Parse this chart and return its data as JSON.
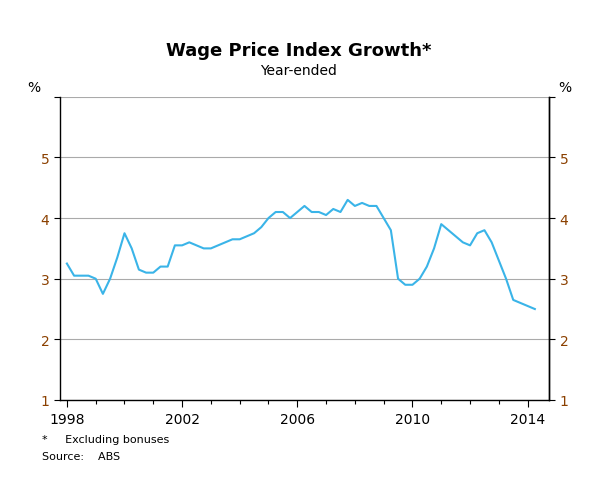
{
  "title": "Wage Price Index Growth*",
  "subtitle": "Year-ended",
  "ylabel_left": "%",
  "ylabel_right": "%",
  "footnote1": "*     Excluding bonuses",
  "footnote2": "Source:    ABS",
  "line_color": "#3ab4e8",
  "line_width": 1.5,
  "ylim": [
    1,
    6
  ],
  "yticks": [
    1,
    2,
    3,
    4,
    5,
    6
  ],
  "ytick_labels": [
    "1",
    "2",
    "3",
    "4",
    "5",
    ""
  ],
  "background_color": "#ffffff",
  "x_values": [
    1998.0,
    1998.25,
    1998.5,
    1998.75,
    1999.0,
    1999.25,
    1999.5,
    1999.75,
    2000.0,
    2000.25,
    2000.5,
    2000.75,
    2001.0,
    2001.25,
    2001.5,
    2001.75,
    2002.0,
    2002.25,
    2002.5,
    2002.75,
    2003.0,
    2003.25,
    2003.5,
    2003.75,
    2004.0,
    2004.25,
    2004.5,
    2004.75,
    2005.0,
    2005.25,
    2005.5,
    2005.75,
    2006.0,
    2006.25,
    2006.5,
    2006.75,
    2007.0,
    2007.25,
    2007.5,
    2007.75,
    2008.0,
    2008.25,
    2008.5,
    2008.75,
    2009.0,
    2009.25,
    2009.5,
    2009.75,
    2010.0,
    2010.25,
    2010.5,
    2010.75,
    2011.0,
    2011.25,
    2011.5,
    2011.75,
    2012.0,
    2012.25,
    2012.5,
    2012.75,
    2013.0,
    2013.25,
    2013.5,
    2013.75,
    2014.0,
    2014.25
  ],
  "y_values": [
    3.25,
    3.05,
    3.05,
    3.05,
    3.0,
    2.75,
    3.0,
    3.35,
    3.75,
    3.5,
    3.15,
    3.1,
    3.1,
    3.2,
    3.2,
    3.55,
    3.55,
    3.6,
    3.55,
    3.5,
    3.5,
    3.55,
    3.6,
    3.65,
    3.65,
    3.7,
    3.75,
    3.85,
    4.0,
    4.1,
    4.1,
    4.0,
    4.1,
    4.2,
    4.1,
    4.1,
    4.05,
    4.15,
    4.1,
    4.3,
    4.2,
    4.25,
    4.2,
    4.2,
    4.0,
    3.8,
    3.0,
    2.9,
    2.9,
    3.0,
    3.2,
    3.5,
    3.9,
    3.8,
    3.7,
    3.6,
    3.55,
    3.75,
    3.8,
    3.6,
    3.3,
    3.0,
    2.65,
    2.6,
    2.55,
    2.5
  ],
  "xticks": [
    1998,
    2002,
    2006,
    2010,
    2014
  ],
  "xlim": [
    1997.75,
    2014.75
  ],
  "grid_color": "#aaaaaa",
  "title_fontsize": 13,
  "subtitle_fontsize": 10,
  "ytick_label_color": "#8B4000",
  "xtick_label_color": "#000000",
  "spine_color": "#000000"
}
